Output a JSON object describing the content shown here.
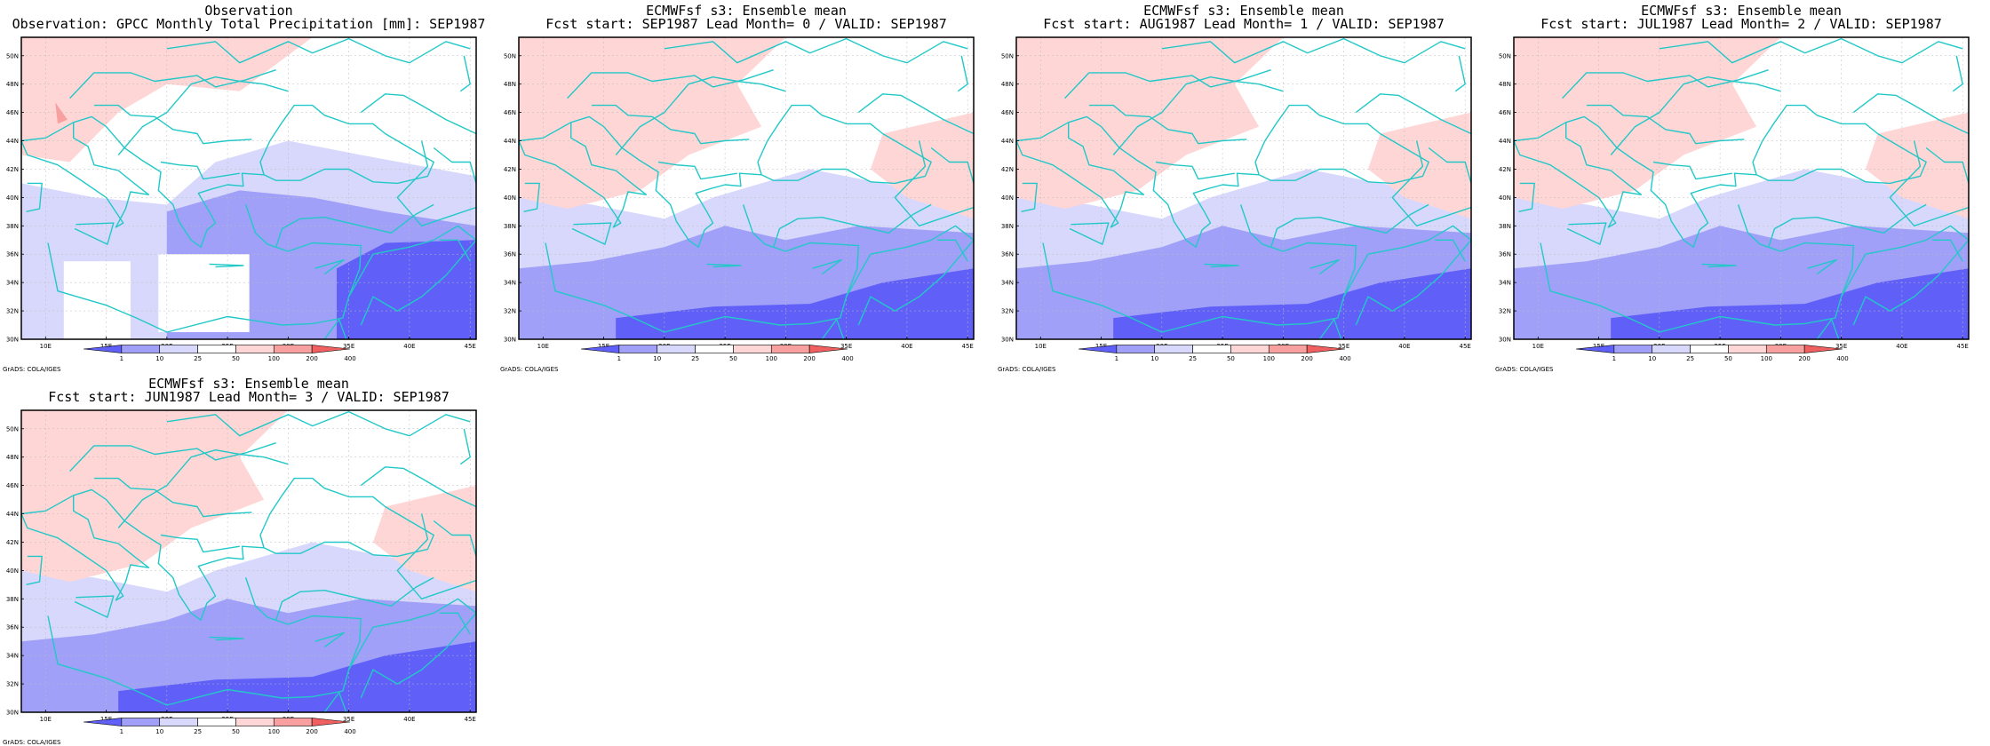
{
  "colors": {
    "coast": "#22c8c8",
    "frame": "#000000",
    "grid": "#bbbbbb",
    "legend_bins": [
      "#6060f8",
      "#a0a0f8",
      "#d8d8fc",
      "#ffffff",
      "#ffd6d6",
      "#f8a0a0",
      "#f06060"
    ]
  },
  "axes": {
    "lat_labels": [
      "30N",
      "32N",
      "34N",
      "36N",
      "38N",
      "40N",
      "42N",
      "44N",
      "46N",
      "48N",
      "50N"
    ],
    "lon_labels": [
      "10E",
      "15E",
      "20E",
      "25E",
      "30E",
      "35E",
      "40E",
      "45E"
    ]
  },
  "legend": {
    "labels": [
      "1",
      "10",
      "25",
      "50",
      "100",
      "200",
      "400"
    ]
  },
  "credit": "GrADS: COLA/IGES",
  "panels": [
    {
      "id": "obs",
      "title_line1": "Observation",
      "title_line2": "Observation: GPCC Monthly Total Precipitation [mm]: SEP1987",
      "field": "observed",
      "has_missing_blocks": true
    },
    {
      "id": "lead0",
      "title_line1": "ECMWFsf s3: Ensemble mean",
      "title_line2": "Fcst start: SEP1987  Lead Month= 0 / VALID: SEP1987",
      "field": "forecast",
      "has_missing_blocks": false
    },
    {
      "id": "lead1",
      "title_line1": "ECMWFsf s3: Ensemble mean",
      "title_line2": "Fcst start: AUG1987  Lead Month= 1 / VALID: SEP1987",
      "field": "forecast",
      "has_missing_blocks": false
    },
    {
      "id": "lead2",
      "title_line1": "ECMWFsf s3: Ensemble mean",
      "title_line2": "Fcst start: JUL1987  Lead Month= 2 / VALID: SEP1987",
      "field": "forecast",
      "has_missing_blocks": false
    },
    {
      "id": "lead3",
      "title_line1": "ECMWFsf s3: Ensemble mean",
      "title_line2": "Fcst start: JUN1987  Lead Month= 3 / VALID: SEP1987",
      "field": "forecast",
      "has_missing_blocks": false
    }
  ]
}
